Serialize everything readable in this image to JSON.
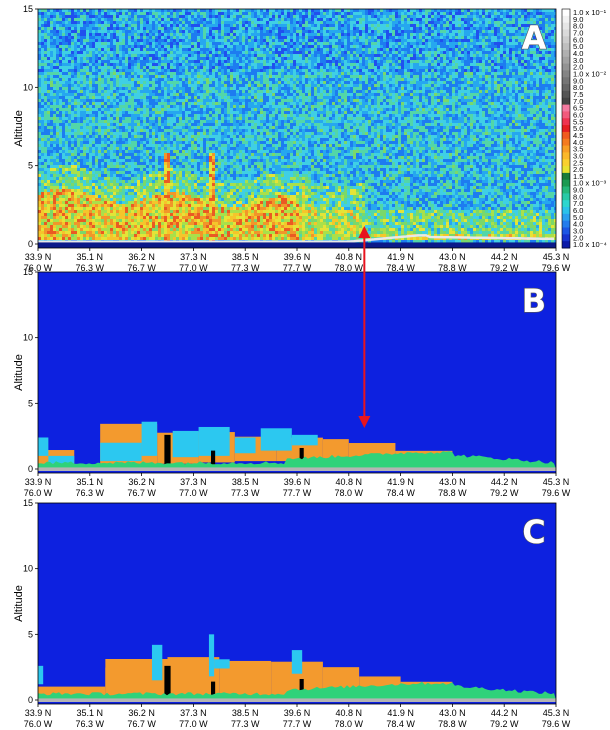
{
  "chart_data": [
    {
      "type": "heatmap",
      "panel_label": "A",
      "ylabel": "Altitude",
      "ylim": [
        0,
        15
      ],
      "yticks": [
        "0",
        "5",
        "10",
        "15"
      ],
      "x_lat": [
        "33.9 N",
        "35.1 N",
        "36.2 N",
        "37.3 N",
        "38.5 N",
        "39.6 N",
        "40.8 N",
        "41.9 N",
        "43.0 N",
        "44.2 N",
        "45.3 N"
      ],
      "x_lon": [
        "76.0 W",
        "76.3 W",
        "76.7 W",
        "77.0 W",
        "77.3 W",
        "77.7 W",
        "78.0 W",
        "78.4 W",
        "78.8 W",
        "79.2 W",
        "79.6 W"
      ],
      "colorbar": {
        "scale": "log",
        "range": [
          0.0001,
          0.1
        ],
        "labels": [
          "1.0 x 10^-1",
          "9.0",
          "8.0",
          "7.0",
          "6.0",
          "5.0",
          "4.0",
          "3.0",
          "2.0",
          "1.0 x 10^-2",
          "9.0",
          "8.0",
          "7.5",
          "7.0",
          "6.5",
          "6.0",
          "5.5",
          "5.0",
          "4.5",
          "4.0",
          "3.5",
          "3.0",
          "2.5",
          "2.0",
          "1.5",
          "1.0 x 10^-3",
          "9.0",
          "8.0",
          "7.0",
          "6.0",
          "5.0",
          "4.0",
          "3.0",
          "2.0",
          "1.0 x 10^-4"
        ]
      },
      "features": [
        {
          "name": "aerosol layer",
          "x_start": "33.9 N",
          "x_end": "41.9 N",
          "alt_top_km": 3.5
        },
        {
          "name": "plume",
          "x_at": "36.2 N",
          "alt_top_km": 6
        },
        {
          "name": "plume",
          "x_at": "37.3 N",
          "alt_top_km": 6
        }
      ]
    },
    {
      "type": "heatmap",
      "panel_label": "B",
      "ylabel": "Altitude",
      "ylim": [
        0,
        15
      ],
      "yticks": [
        "0",
        "5",
        "10",
        "15"
      ],
      "x_lat": [
        "33.9 N",
        "35.1 N",
        "36.2 N",
        "37.3 N",
        "38.5 N",
        "39.6 N",
        "40.8 N",
        "41.9 N",
        "43.0 N",
        "44.2 N",
        "45.3 N"
      ],
      "x_lon": [
        "76.0 W",
        "76.3 W",
        "76.7 W",
        "77.0 W",
        "77.3 W",
        "77.7 W",
        "78.0 W",
        "78.4 W",
        "78.8 W",
        "79.2 W",
        "79.6 W"
      ],
      "classes": [
        "clear air",
        "aerosol",
        "cloud",
        "surface",
        "no signal"
      ],
      "class_colors": {
        "clear air": "#0d21e0",
        "aerosol": "#f39a2e",
        "cloud": "#2cc8f0",
        "surface": "#2fd27a",
        "no signal": "#000000"
      }
    },
    {
      "type": "heatmap",
      "panel_label": "C",
      "ylabel": "Altitude",
      "ylim": [
        0,
        15
      ],
      "yticks": [
        "0",
        "5",
        "10",
        "15"
      ],
      "x_lat": [
        "33.9 N",
        "35.1 N",
        "36.2 N",
        "37.3 N",
        "38.5 N",
        "39.6 N",
        "40.8 N",
        "41.9 N",
        "43.0 N",
        "44.2 N",
        "45.3 N"
      ],
      "x_lon": [
        "76.0 W",
        "76.3 W",
        "76.7 W",
        "77.0 W",
        "77.3 W",
        "77.7 W",
        "78.0 W",
        "78.4 W",
        "78.8 W",
        "79.2 W",
        "79.6 W"
      ],
      "classes": [
        "clear air",
        "aerosol",
        "cloud",
        "surface",
        "no signal"
      ],
      "class_colors": {
        "clear air": "#0d21e0",
        "aerosol": "#f39a2e",
        "cloud": "#2cc8f0",
        "surface": "#2fd27a",
        "no signal": "#000000"
      }
    }
  ],
  "annotation": {
    "type": "double-arrow",
    "color": "#e8141e",
    "connects": [
      "A",
      "B"
    ],
    "x_at": "40.8 N"
  }
}
